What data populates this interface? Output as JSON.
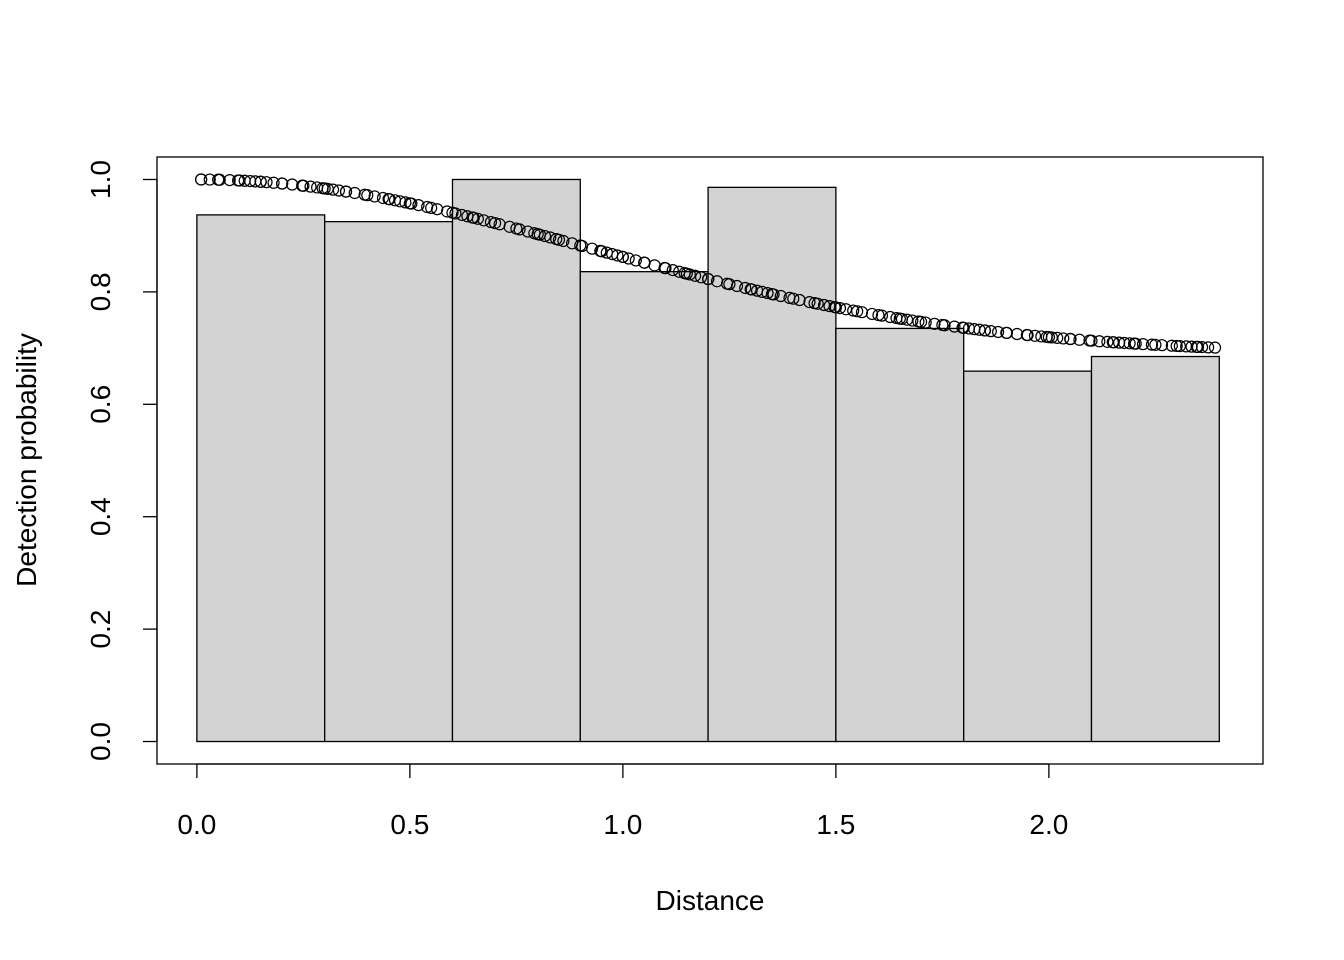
{
  "chart_data": {
    "type": "bar",
    "title": "",
    "xlabel": "Distance",
    "ylabel": "Detection probability",
    "xlim": [
      -0.0936,
      2.5026
    ],
    "ylim": [
      -0.04,
      1.04
    ],
    "x_ticks": [
      "0.0",
      "0.5",
      "1.0",
      "1.5",
      "2.0"
    ],
    "x_tick_values": [
      0,
      0.5,
      1.0,
      1.5,
      2.0
    ],
    "y_ticks": [
      "0.0",
      "0.2",
      "0.4",
      "0.6",
      "0.8",
      "1.0"
    ],
    "y_tick_values": [
      0,
      0.2,
      0.4,
      0.6,
      0.8,
      1.0
    ],
    "bins": [
      {
        "x0": 0.0,
        "x1": 0.3,
        "value": 0.937
      },
      {
        "x0": 0.3,
        "x1": 0.6,
        "value": 0.925
      },
      {
        "x0": 0.6,
        "x1": 0.9,
        "value": 1.0
      },
      {
        "x0": 0.9,
        "x1": 1.2,
        "value": 0.836
      },
      {
        "x0": 1.2,
        "x1": 1.5,
        "value": 0.986
      },
      {
        "x0": 1.5,
        "x1": 1.8,
        "value": 0.735
      },
      {
        "x0": 1.8,
        "x1": 2.1,
        "value": 0.659
      },
      {
        "x0": 2.1,
        "x1": 2.4,
        "value": 0.685
      }
    ],
    "bar_color": "#d3d3d3",
    "curve": {
      "type": "scatter",
      "marker": "open-circle",
      "x": [
        0.01,
        0.05,
        0.1,
        0.15,
        0.2,
        0.25,
        0.3,
        0.35,
        0.4,
        0.45,
        0.5,
        0.55,
        0.6,
        0.65,
        0.7,
        0.75,
        0.8,
        0.85,
        0.9,
        0.95,
        1.0,
        1.05,
        1.1,
        1.15,
        1.2,
        1.25,
        1.3,
        1.35,
        1.4,
        1.45,
        1.5,
        1.55,
        1.6,
        1.65,
        1.7,
        1.75,
        1.8,
        1.85,
        1.9,
        1.95,
        2.0,
        2.05,
        2.1,
        2.15,
        2.2,
        2.25,
        2.3,
        2.35,
        2.39
      ],
      "y": [
        1.0,
        0.999,
        0.998,
        0.996,
        0.994,
        0.991,
        0.987,
        0.982,
        0.977,
        0.97,
        0.963,
        0.955,
        0.946,
        0.936,
        0.925,
        0.914,
        0.902,
        0.89,
        0.878,
        0.866,
        0.853,
        0.84,
        0.828,
        0.815,
        0.803,
        0.79,
        0.778,
        0.766,
        0.754,
        0.743,
        0.733,
        0.722,
        0.712,
        0.703,
        0.695,
        0.687,
        0.679,
        0.673,
        0.667,
        0.661,
        0.656,
        0.652,
        0.648,
        0.645,
        0.642,
        0.64,
        0.638,
        0.694,
        0.693
      ]
    }
  }
}
